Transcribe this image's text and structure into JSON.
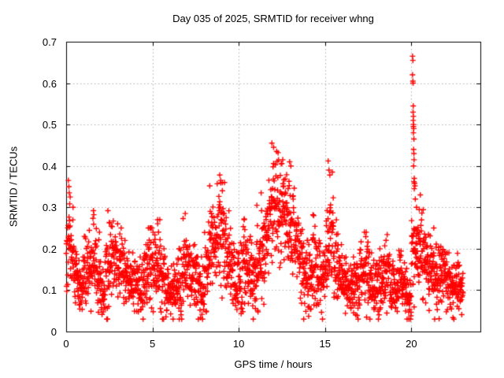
{
  "chart": {
    "title": "Day 035 of 2025, SRMTID for receiver whng",
    "xlabel": "GPS time / hours",
    "ylabel": "SRMTID / TECUs"
  },
  "chart_data": {
    "type": "scatter",
    "title": "Day 035 of 2025, SRMTID for receiver whng",
    "xlabel": "GPS time / hours",
    "ylabel": "SRMTID / TECUs",
    "xlim": [
      0,
      24
    ],
    "ylim": [
      0,
      0.7
    ],
    "xticks": [
      0,
      5,
      10,
      15,
      20
    ],
    "xtick_labels": [
      "0",
      "5",
      "10",
      "15",
      "20"
    ],
    "yticks": [
      0,
      0.1,
      0.2,
      0.3,
      0.4,
      0.5,
      0.6,
      0.7
    ],
    "ytick_labels": [
      "0",
      "0.1",
      "0.2",
      "0.3",
      "0.4",
      "0.5",
      "0.6",
      "0.7"
    ],
    "grid": "dotted",
    "grid_color": "#b0b0b0",
    "axis_color": "#000000",
    "legend": "none",
    "marker": "plus",
    "marker_color": "#ff0000",
    "marker_size_px": 7,
    "seed": 20250135,
    "sampling_profile": {
      "bin_hours": 0.25,
      "points_per_bin": 26,
      "min_value": 0.03,
      "bins": [
        [
          0.0,
          0.225,
          0.055,
          0.37
        ],
        [
          0.25,
          0.185,
          0.05,
          0.3
        ],
        [
          0.5,
          0.135,
          0.04,
          0.22
        ],
        [
          0.75,
          0.11,
          0.035,
          0.18
        ],
        [
          1.0,
          0.145,
          0.04,
          0.23
        ],
        [
          1.25,
          0.17,
          0.045,
          0.26
        ],
        [
          1.5,
          0.19,
          0.05,
          0.29
        ],
        [
          1.75,
          0.13,
          0.05,
          0.24
        ],
        [
          2.0,
          0.085,
          0.035,
          0.15
        ],
        [
          2.25,
          0.155,
          0.055,
          0.28
        ],
        [
          2.5,
          0.195,
          0.05,
          0.29
        ],
        [
          2.75,
          0.17,
          0.04,
          0.26
        ],
        [
          3.0,
          0.16,
          0.045,
          0.25
        ],
        [
          3.25,
          0.14,
          0.04,
          0.22
        ],
        [
          3.5,
          0.125,
          0.035,
          0.2
        ],
        [
          3.75,
          0.12,
          0.035,
          0.19
        ],
        [
          4.0,
          0.12,
          0.04,
          0.2
        ],
        [
          4.25,
          0.105,
          0.035,
          0.18
        ],
        [
          4.5,
          0.135,
          0.04,
          0.21
        ],
        [
          4.75,
          0.165,
          0.045,
          0.25
        ],
        [
          5.0,
          0.16,
          0.04,
          0.24
        ],
        [
          5.25,
          0.165,
          0.05,
          0.27
        ],
        [
          5.5,
          0.125,
          0.035,
          0.2
        ],
        [
          5.75,
          0.09,
          0.03,
          0.15
        ],
        [
          6.0,
          0.1,
          0.035,
          0.17
        ],
        [
          6.25,
          0.105,
          0.04,
          0.18
        ],
        [
          6.5,
          0.12,
          0.04,
          0.2
        ],
        [
          6.75,
          0.165,
          0.05,
          0.28
        ],
        [
          7.0,
          0.16,
          0.05,
          0.27
        ],
        [
          7.25,
          0.13,
          0.04,
          0.21
        ],
        [
          7.5,
          0.11,
          0.035,
          0.18
        ],
        [
          7.75,
          0.1,
          0.04,
          0.18
        ],
        [
          8.0,
          0.145,
          0.05,
          0.25
        ],
        [
          8.25,
          0.235,
          0.055,
          0.35
        ],
        [
          8.5,
          0.215,
          0.055,
          0.33
        ],
        [
          8.75,
          0.255,
          0.06,
          0.38
        ],
        [
          9.0,
          0.235,
          0.055,
          0.36
        ],
        [
          9.25,
          0.185,
          0.05,
          0.3
        ],
        [
          9.5,
          0.155,
          0.045,
          0.25
        ],
        [
          9.75,
          0.115,
          0.04,
          0.2
        ],
        [
          10.0,
          0.125,
          0.045,
          0.22
        ],
        [
          10.25,
          0.165,
          0.05,
          0.27
        ],
        [
          10.5,
          0.15,
          0.045,
          0.25
        ],
        [
          10.75,
          0.12,
          0.045,
          0.22
        ],
        [
          11.0,
          0.175,
          0.055,
          0.3
        ],
        [
          11.25,
          0.205,
          0.055,
          0.33
        ],
        [
          11.5,
          0.24,
          0.06,
          0.37
        ],
        [
          11.75,
          0.29,
          0.065,
          0.44
        ],
        [
          12.0,
          0.3,
          0.065,
          0.455
        ],
        [
          12.25,
          0.29,
          0.06,
          0.43
        ],
        [
          12.5,
          0.28,
          0.06,
          0.41
        ],
        [
          12.75,
          0.265,
          0.06,
          0.4
        ],
        [
          13.0,
          0.25,
          0.06,
          0.41
        ],
        [
          13.25,
          0.21,
          0.05,
          0.33
        ],
        [
          13.5,
          0.17,
          0.045,
          0.27
        ],
        [
          13.75,
          0.14,
          0.04,
          0.22
        ],
        [
          14.0,
          0.13,
          0.04,
          0.21
        ],
        [
          14.25,
          0.165,
          0.05,
          0.28
        ],
        [
          14.5,
          0.14,
          0.04,
          0.22
        ],
        [
          14.75,
          0.11,
          0.04,
          0.19
        ],
        [
          15.0,
          0.185,
          0.055,
          0.33
        ],
        [
          15.25,
          0.23,
          0.06,
          0.41
        ],
        [
          15.5,
          0.165,
          0.05,
          0.27
        ],
        [
          15.75,
          0.13,
          0.04,
          0.21
        ],
        [
          16.0,
          0.115,
          0.035,
          0.18
        ],
        [
          16.25,
          0.1,
          0.03,
          0.16
        ],
        [
          16.5,
          0.11,
          0.035,
          0.18
        ],
        [
          16.75,
          0.12,
          0.04,
          0.2
        ],
        [
          17.0,
          0.15,
          0.05,
          0.26
        ],
        [
          17.25,
          0.145,
          0.045,
          0.24
        ],
        [
          17.5,
          0.12,
          0.04,
          0.19
        ],
        [
          17.75,
          0.11,
          0.035,
          0.18
        ],
        [
          18.0,
          0.12,
          0.04,
          0.2
        ],
        [
          18.25,
          0.13,
          0.04,
          0.21
        ],
        [
          18.5,
          0.145,
          0.045,
          0.24
        ],
        [
          18.75,
          0.1,
          0.035,
          0.17
        ],
        [
          19.0,
          0.09,
          0.03,
          0.15
        ],
        [
          19.25,
          0.12,
          0.04,
          0.2
        ],
        [
          19.5,
          0.1,
          0.035,
          0.17
        ],
        [
          19.75,
          0.085,
          0.03,
          0.14
        ],
        [
          20.0,
          0.195,
          0.055,
          0.31
        ],
        [
          20.25,
          0.215,
          0.055,
          0.36
        ],
        [
          20.5,
          0.19,
          0.05,
          0.33
        ],
        [
          20.75,
          0.165,
          0.045,
          0.28
        ],
        [
          21.0,
          0.15,
          0.04,
          0.24
        ],
        [
          21.25,
          0.14,
          0.04,
          0.23
        ],
        [
          21.5,
          0.13,
          0.04,
          0.21
        ],
        [
          21.75,
          0.145,
          0.045,
          0.25
        ],
        [
          22.0,
          0.12,
          0.035,
          0.19
        ],
        [
          22.25,
          0.1,
          0.03,
          0.16
        ],
        [
          22.5,
          0.11,
          0.035,
          0.19
        ],
        [
          22.75,
          0.095,
          0.03,
          0.16
        ]
      ]
    },
    "extra_points": [
      [
        20.07,
        0.665
      ],
      [
        20.09,
        0.655
      ],
      [
        20.07,
        0.62
      ],
      [
        20.09,
        0.605
      ],
      [
        20.1,
        0.6
      ],
      [
        20.11,
        0.545
      ],
      [
        20.1,
        0.53
      ],
      [
        20.12,
        0.52
      ],
      [
        20.11,
        0.51
      ],
      [
        20.13,
        0.5
      ],
      [
        20.12,
        0.495
      ],
      [
        20.14,
        0.49
      ],
      [
        20.12,
        0.48
      ],
      [
        20.15,
        0.465
      ],
      [
        20.13,
        0.44
      ],
      [
        20.15,
        0.43
      ],
      [
        20.16,
        0.415
      ],
      [
        20.13,
        0.4
      ],
      [
        20.17,
        0.37
      ],
      [
        20.15,
        0.362
      ],
      [
        20.19,
        0.358
      ],
      [
        20.21,
        0.352
      ],
      [
        20.17,
        0.345
      ],
      [
        20.23,
        0.32
      ],
      [
        20.3,
        0.3
      ],
      [
        0.13,
        0.365
      ],
      [
        0.16,
        0.35
      ],
      [
        0.18,
        0.335
      ],
      [
        1.58,
        0.292
      ],
      [
        2.42,
        0.292
      ],
      [
        5.3,
        0.27
      ],
      [
        6.9,
        0.285
      ],
      [
        8.32,
        0.352
      ],
      [
        8.9,
        0.378
      ],
      [
        8.95,
        0.365
      ],
      [
        9.05,
        0.34
      ],
      [
        10.32,
        0.272
      ],
      [
        11.05,
        0.305
      ],
      [
        11.3,
        0.335
      ],
      [
        11.92,
        0.455
      ],
      [
        12.02,
        0.445
      ],
      [
        12.28,
        0.432
      ],
      [
        12.55,
        0.415
      ],
      [
        12.95,
        0.41
      ],
      [
        13.02,
        0.4
      ],
      [
        14.3,
        0.282
      ],
      [
        15.18,
        0.412
      ],
      [
        15.23,
        0.39
      ],
      [
        15.28,
        0.378
      ],
      [
        20.52,
        0.33
      ],
      [
        21.3,
        0.25
      ]
    ]
  }
}
